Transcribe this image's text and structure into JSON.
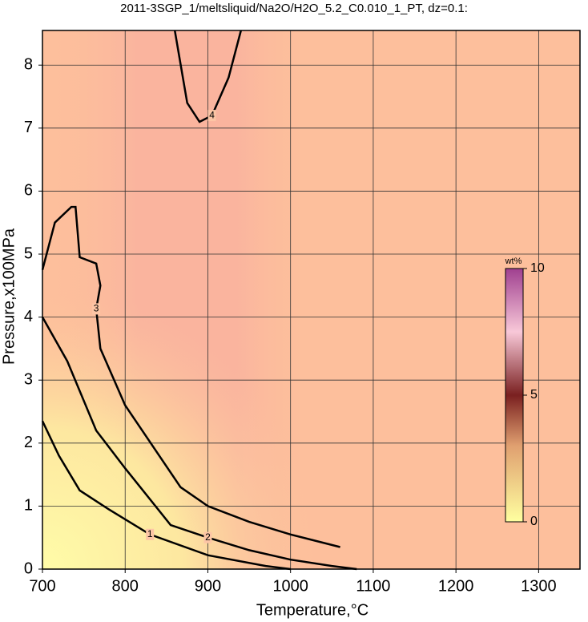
{
  "chart_data": {
    "type": "contour",
    "title": "2011-3SGP_1/meltsliquid/Na2O/H2O_5.2_C0.010_1_PT, dz=0.1:",
    "x_label": "Temperature,°C",
    "y_label": "Pressure,x100MPa",
    "xlim": [
      700,
      1350
    ],
    "ylim": [
      0,
      8.55
    ],
    "xticks": [
      700,
      800,
      900,
      1000,
      1100,
      1200,
      1300
    ],
    "yticks": [
      0,
      1,
      2,
      3,
      4,
      5,
      6,
      7,
      8
    ],
    "grid": true,
    "contours": [
      {
        "level": 1,
        "x": [
          700,
          720,
          745,
          780,
          830,
          900,
          970,
          1000
        ],
        "y": [
          2.35,
          1.8,
          1.25,
          0.95,
          0.55,
          0.22,
          0.05,
          0
        ]
      },
      {
        "level": 2,
        "x": [
          700,
          730,
          765,
          800,
          855,
          900,
          950,
          1000,
          1050,
          1080
        ],
        "y": [
          4.0,
          3.3,
          2.2,
          1.6,
          0.7,
          0.5,
          0.3,
          0.15,
          0.05,
          0
        ]
      },
      {
        "level": 3,
        "x": [
          700,
          715,
          735,
          740,
          745,
          765,
          770,
          765,
          770,
          800,
          867,
          900,
          950,
          1000,
          1060
        ],
        "y": [
          4.75,
          5.5,
          5.75,
          5.75,
          4.95,
          4.85,
          4.5,
          4.13,
          3.5,
          2.6,
          1.3,
          1.0,
          0.75,
          0.55,
          0.35
        ]
      },
      {
        "level": 4,
        "x": [
          860,
          875,
          890,
          905,
          925,
          940
        ],
        "y": [
          8.55,
          7.4,
          7.1,
          7.2,
          7.8,
          8.55
        ]
      }
    ],
    "colorbar": {
      "label": "wt%",
      "lim": [
        0,
        10
      ],
      "ticks": [
        0,
        5,
        10
      ]
    }
  }
}
